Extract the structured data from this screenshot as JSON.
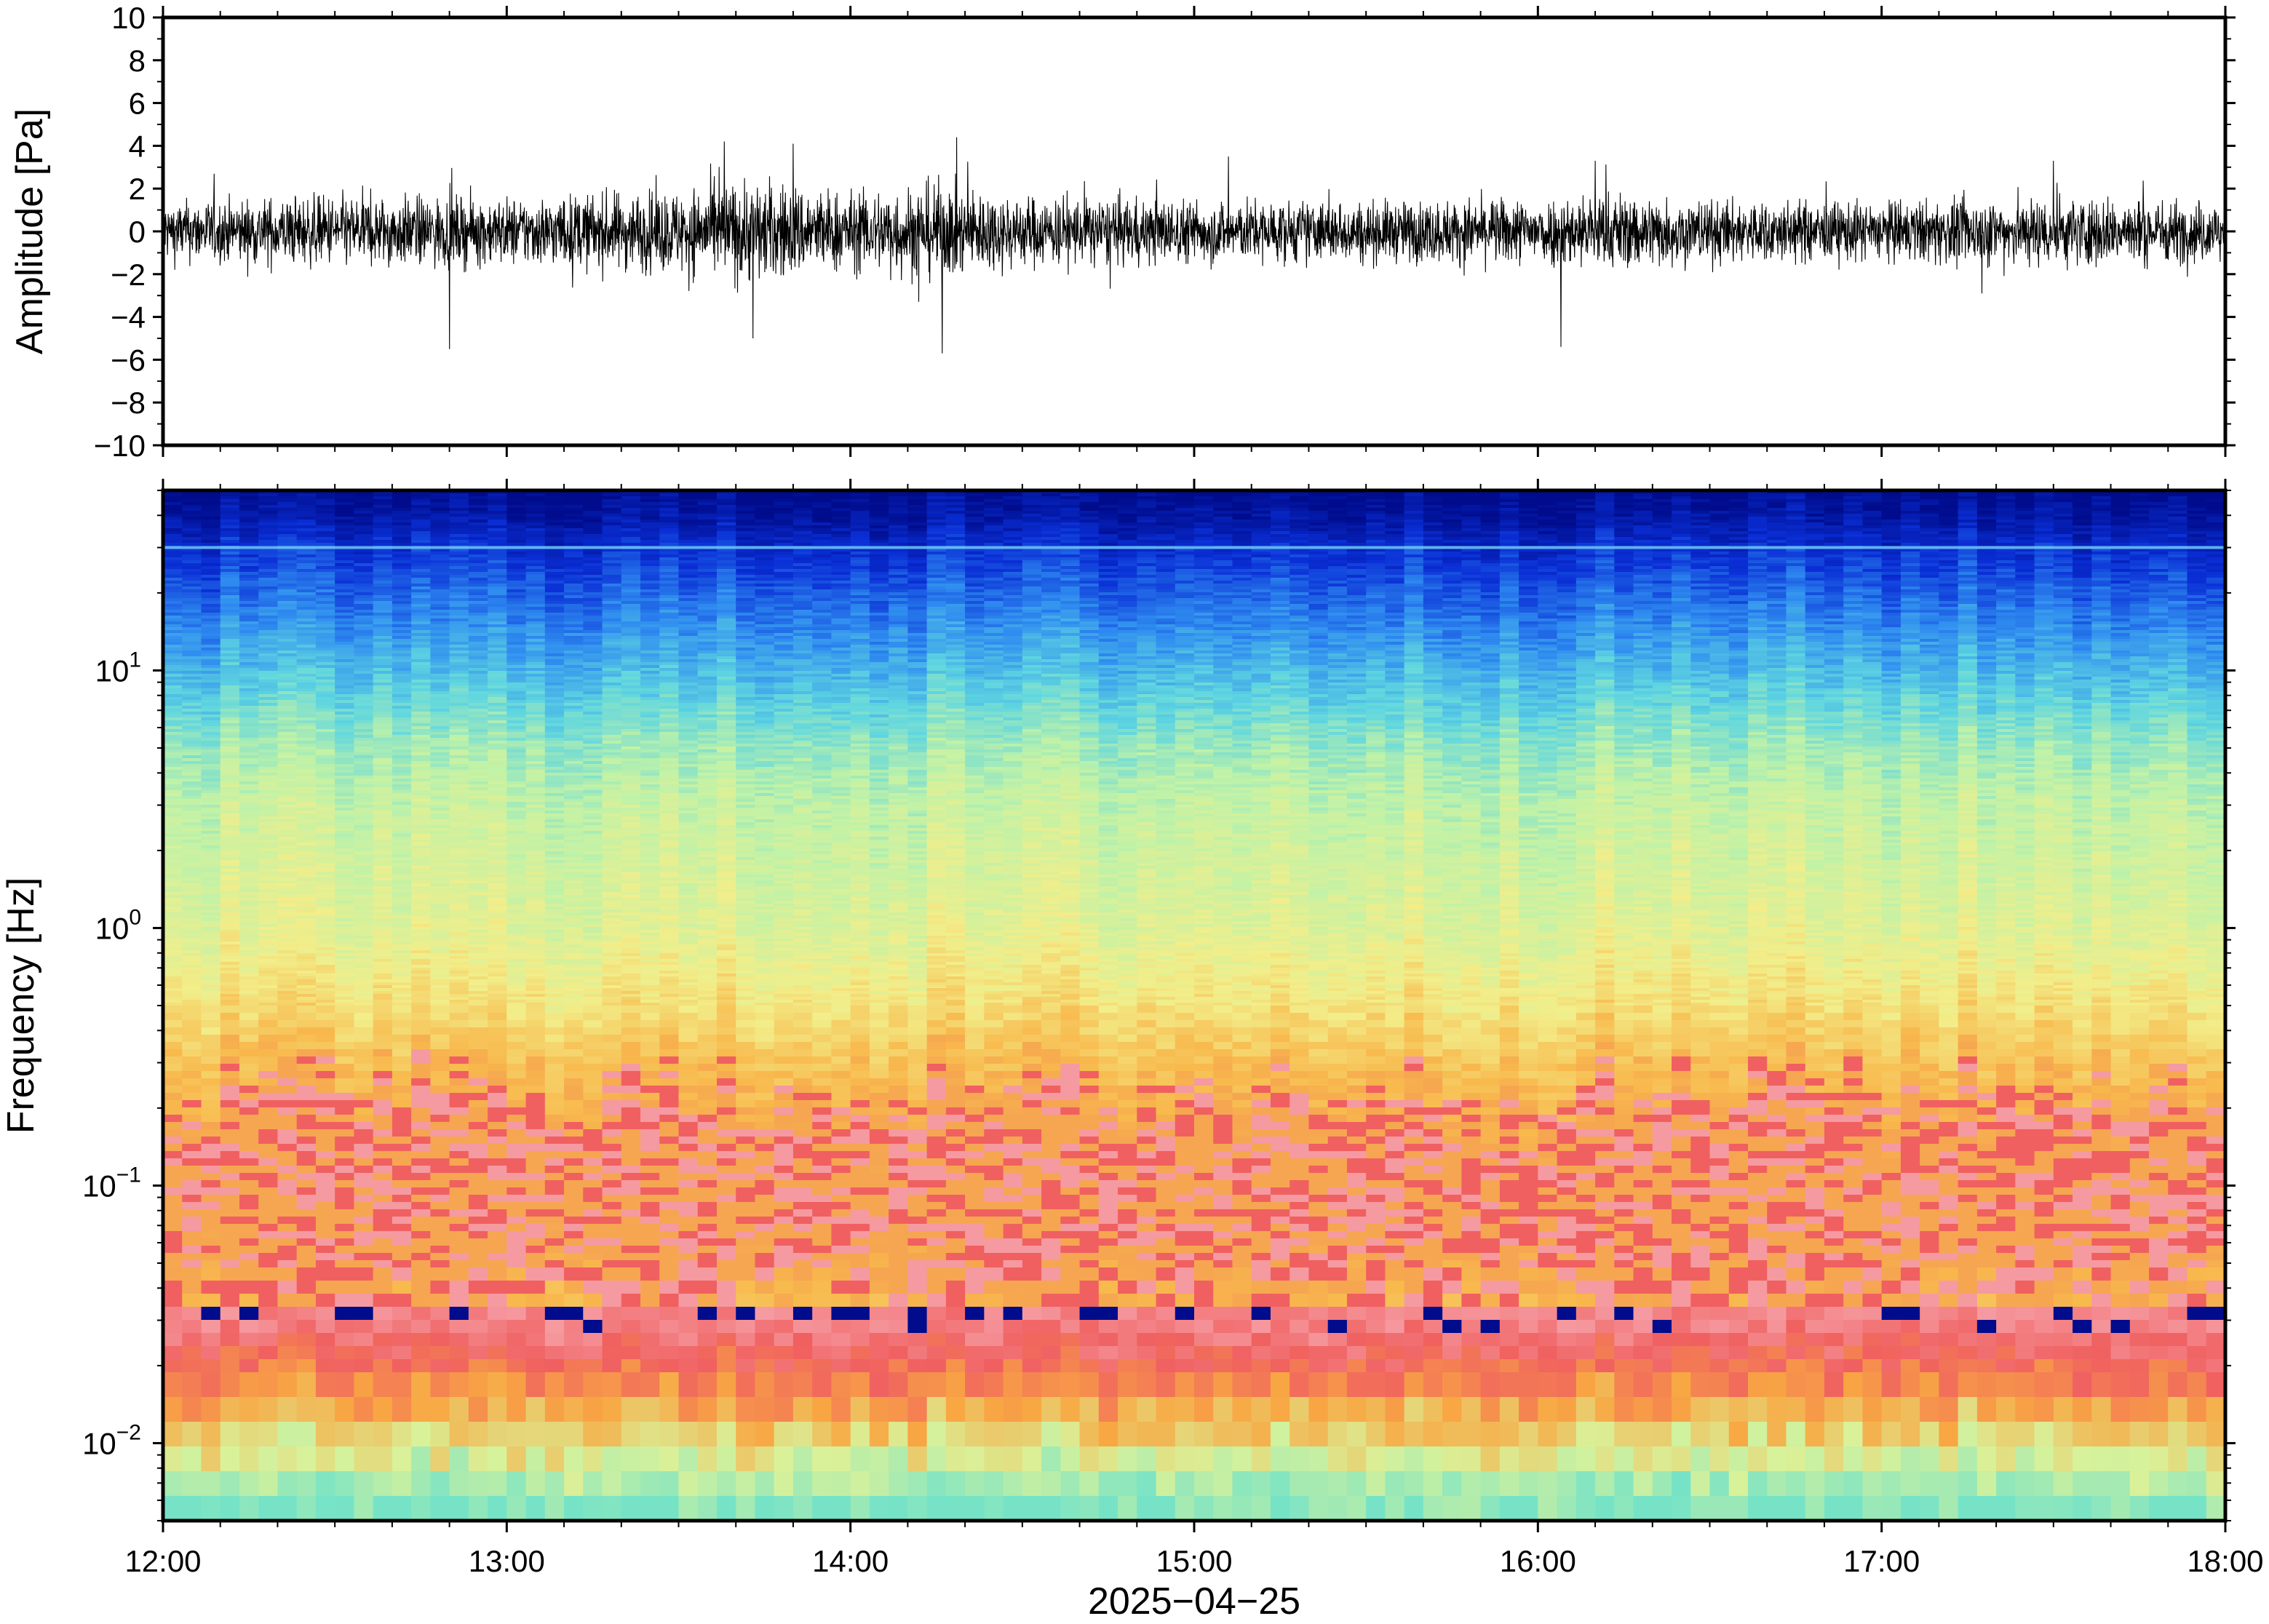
{
  "chart_data": [
    {
      "type": "line",
      "panel": "waveform",
      "ylabel": "Amplitude [Pa]",
      "ylim": [
        -10,
        10
      ],
      "yticks": [
        10,
        8,
        6,
        4,
        2,
        0,
        -2,
        -4,
        -6,
        -8,
        -10
      ],
      "ytick_labels": [
        "10",
        "8",
        "6",
        "4",
        "2",
        "0",
        "−2",
        "−4",
        "−6",
        "−8",
        "−10"
      ],
      "xlim": [
        "12:00",
        "18:00"
      ],
      "grid": false,
      "envelope_profile": {
        "hours": [
          12.0,
          12.5,
          13.0,
          13.5,
          13.7,
          14.0,
          14.25,
          14.5,
          15.0,
          15.5,
          16.0,
          16.2,
          16.5,
          17.0,
          17.5,
          18.0
        ],
        "amplitude": [
          1.6,
          1.9,
          1.8,
          2.2,
          2.8,
          2.1,
          2.6,
          1.9,
          1.7,
          1.6,
          1.8,
          2.1,
          1.7,
          1.6,
          1.9,
          1.6
        ]
      },
      "peaks": [
        {
          "time": "14:16",
          "value": 4.6
        },
        {
          "time": "14:16",
          "value": -5.7
        },
        {
          "time": "13:50",
          "value": 4.1
        },
        {
          "time": "13:43",
          "value": -5.0
        },
        {
          "time": "12:50",
          "value": -5.5
        },
        {
          "time": "16:04",
          "value": -5.4
        },
        {
          "time": "16:10",
          "value": 3.3
        },
        {
          "time": "17:30",
          "value": 3.3
        },
        {
          "time": "15:06",
          "value": 3.5
        },
        {
          "time": "13:38",
          "value": 4.2
        }
      ],
      "color": "#000000"
    },
    {
      "type": "heatmap",
      "panel": "spectrogram",
      "ylabel": "Frequency [Hz]",
      "yscale": "log",
      "ylim": [
        0.005,
        50
      ],
      "yticks": [
        10,
        1,
        0.1,
        0.01
      ],
      "ytick_labels": [
        {
          "base": "10",
          "exp": "1"
        },
        {
          "base": "10",
          "exp": "0"
        },
        {
          "base": "10",
          "exp": "−1"
        },
        {
          "base": "10",
          "exp": "−2"
        }
      ],
      "xlim": [
        "12:00",
        "18:00"
      ],
      "xticks": [
        "12:00",
        "13:00",
        "14:00",
        "15:00",
        "16:00",
        "17:00",
        "18:00"
      ],
      "xlabel": "2025−04−25",
      "colormap": "rainbow (blue = low power at high frequency, red/pink = high power near 0.03–0.3 Hz)",
      "colormap_stops": [
        "#000c8c",
        "#0a2fd6",
        "#2f8cf0",
        "#5fd6e0",
        "#bff2a8",
        "#f2ee8a",
        "#f8b94d",
        "#f06a5a",
        "#f59aa0",
        "#f06060",
        "#f8a843",
        "#d9f29a",
        "#76e3c7"
      ],
      "freq_level_profile": {
        "freq_hz": [
          50,
          40,
          30,
          20,
          10,
          5,
          3,
          1,
          0.5,
          0.3,
          0.15,
          0.08,
          0.04,
          0.025,
          0.015,
          0.01,
          0.007,
          0.005
        ],
        "level": [
          0.0,
          0.04,
          0.12,
          0.2,
          0.33,
          0.46,
          0.52,
          0.58,
          0.66,
          0.74,
          0.83,
          0.86,
          0.8,
          0.74,
          0.62,
          0.52,
          0.44,
          0.42
        ]
      },
      "narrowband_line_hz": 30
    }
  ]
}
